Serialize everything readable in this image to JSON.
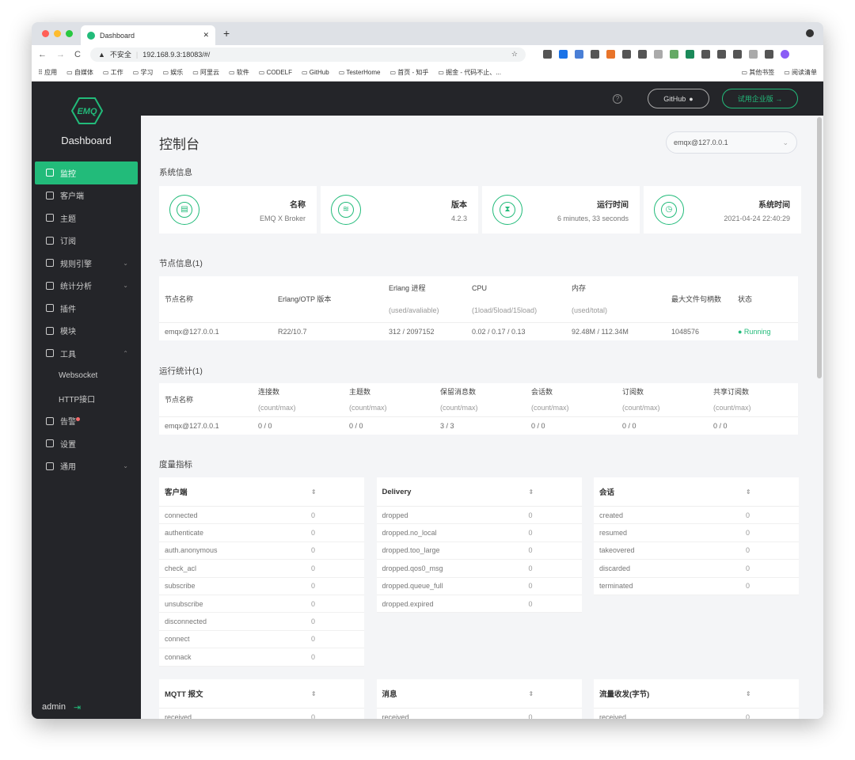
{
  "browser": {
    "tab_title": "Dashboard",
    "security": "不安全",
    "url": "192.168.9.3:18083/#/",
    "bookmarks": [
      "应用",
      "自媒体",
      "工作",
      "学习",
      "娱乐",
      "阿里云",
      "软件",
      "CODELF",
      "GitHub",
      "TesterHome",
      "首页 - 知乎",
      "掘金 - 代码不止、..."
    ],
    "bookmarks_right": [
      "其他书签",
      "阅读清单"
    ]
  },
  "sidebar": {
    "brand": "Dashboard",
    "logo_text": "EMQ",
    "items": [
      {
        "label": "监控",
        "icon": "monitor-icon",
        "active": true
      },
      {
        "label": "客户端",
        "icon": "clients-icon"
      },
      {
        "label": "主题",
        "icon": "topics-icon"
      },
      {
        "label": "订阅",
        "icon": "subscriptions-icon"
      },
      {
        "label": "规则引擎",
        "icon": "rules-icon",
        "chevron": "⌄"
      },
      {
        "label": "统计分析",
        "icon": "analytics-icon",
        "chevron": "⌄"
      },
      {
        "label": "插件",
        "icon": "plugins-icon"
      },
      {
        "label": "模块",
        "icon": "modules-icon"
      },
      {
        "label": "工具",
        "icon": "tools-icon",
        "chevron": "⌃"
      },
      {
        "label": "Websocket",
        "sub": true
      },
      {
        "label": "HTTP接口",
        "sub": true
      },
      {
        "label": "告警",
        "icon": "alarm-icon",
        "badge": true
      },
      {
        "label": "设置",
        "icon": "settings-icon"
      },
      {
        "label": "通用",
        "icon": "general-icon",
        "chevron": "⌄"
      }
    ],
    "user": "admin"
  },
  "header": {
    "help": "?",
    "github": "GitHub",
    "trial": "试用企业版 →"
  },
  "page": {
    "title": "控制台",
    "node_select": "emqx@127.0.0.1"
  },
  "system": {
    "title": "系统信息",
    "cards": [
      {
        "label": "名称",
        "value": "EMQ X Broker",
        "icon": "file-icon",
        "glyph": "▤"
      },
      {
        "label": "版本",
        "value": "4.2.3",
        "icon": "layers-icon",
        "glyph": "≋"
      },
      {
        "label": "运行时间",
        "value": "6 minutes, 33 seconds",
        "icon": "hourglass-icon",
        "glyph": "⧗"
      },
      {
        "label": "系统时间",
        "value": "2021-04-24 22:40:29",
        "icon": "clock-icon",
        "glyph": "◷"
      }
    ]
  },
  "nodes": {
    "title": "节点信息(1)",
    "headers": [
      [
        "节点名称",
        ""
      ],
      [
        "Erlang/OTP 版本",
        ""
      ],
      [
        "Erlang 进程",
        "(used/avaliable)"
      ],
      [
        "CPU",
        "(1load/5load/15load)"
      ],
      [
        "内存",
        "(used/total)"
      ],
      [
        "最大文件句柄数",
        ""
      ],
      [
        "状态",
        ""
      ]
    ],
    "rows": [
      [
        "emqx@127.0.0.1",
        "R22/10.7",
        "312 / 2097152",
        "0.02 / 0.17 / 0.13",
        "92.48M / 112.34M",
        "1048576",
        "● Running"
      ]
    ]
  },
  "stats": {
    "title": "运行统计(1)",
    "headers": [
      [
        "节点名称",
        ""
      ],
      [
        "连接数",
        "(count/max)"
      ],
      [
        "主题数",
        "(count/max)"
      ],
      [
        "保留消息数",
        "(count/max)"
      ],
      [
        "会话数",
        "(count/max)"
      ],
      [
        "订阅数",
        "(count/max)"
      ],
      [
        "共享订阅数",
        "(count/max)"
      ]
    ],
    "rows": [
      [
        "emqx@127.0.0.1",
        "0 / 0",
        "0 / 0",
        "3 / 3",
        "0 / 0",
        "0 / 0",
        "0 / 0"
      ]
    ]
  },
  "metrics": {
    "title": "度量指标",
    "tables": [
      {
        "title": "客户端",
        "rows": [
          [
            "connected",
            "0"
          ],
          [
            "authenticate",
            "0"
          ],
          [
            "auth.anonymous",
            "0"
          ],
          [
            "check_acl",
            "0"
          ],
          [
            "subscribe",
            "0"
          ],
          [
            "unsubscribe",
            "0"
          ],
          [
            "disconnected",
            "0"
          ],
          [
            "connect",
            "0"
          ],
          [
            "connack",
            "0"
          ]
        ]
      },
      {
        "title": "Delivery",
        "rows": [
          [
            "dropped",
            "0"
          ],
          [
            "dropped.no_local",
            "0"
          ],
          [
            "dropped.too_large",
            "0"
          ],
          [
            "dropped.qos0_msg",
            "0"
          ],
          [
            "dropped.queue_full",
            "0"
          ],
          [
            "dropped.expired",
            "0"
          ]
        ]
      },
      {
        "title": "会话",
        "rows": [
          [
            "created",
            "0"
          ],
          [
            "resumed",
            "0"
          ],
          [
            "takeovered",
            "0"
          ],
          [
            "discarded",
            "0"
          ],
          [
            "terminated",
            "0"
          ]
        ]
      },
      {
        "title": "MQTT 报文",
        "rows": [
          [
            "received",
            "0"
          ]
        ]
      },
      {
        "title": "消息",
        "rows": [
          [
            "received",
            "0"
          ]
        ]
      },
      {
        "title": "流量收发(字节)",
        "rows": [
          [
            "received",
            "0"
          ]
        ]
      }
    ]
  },
  "colors": {
    "accent": "#22bb7a",
    "sidebar_bg": "#242529",
    "page_bg": "#f4f5f7"
  }
}
